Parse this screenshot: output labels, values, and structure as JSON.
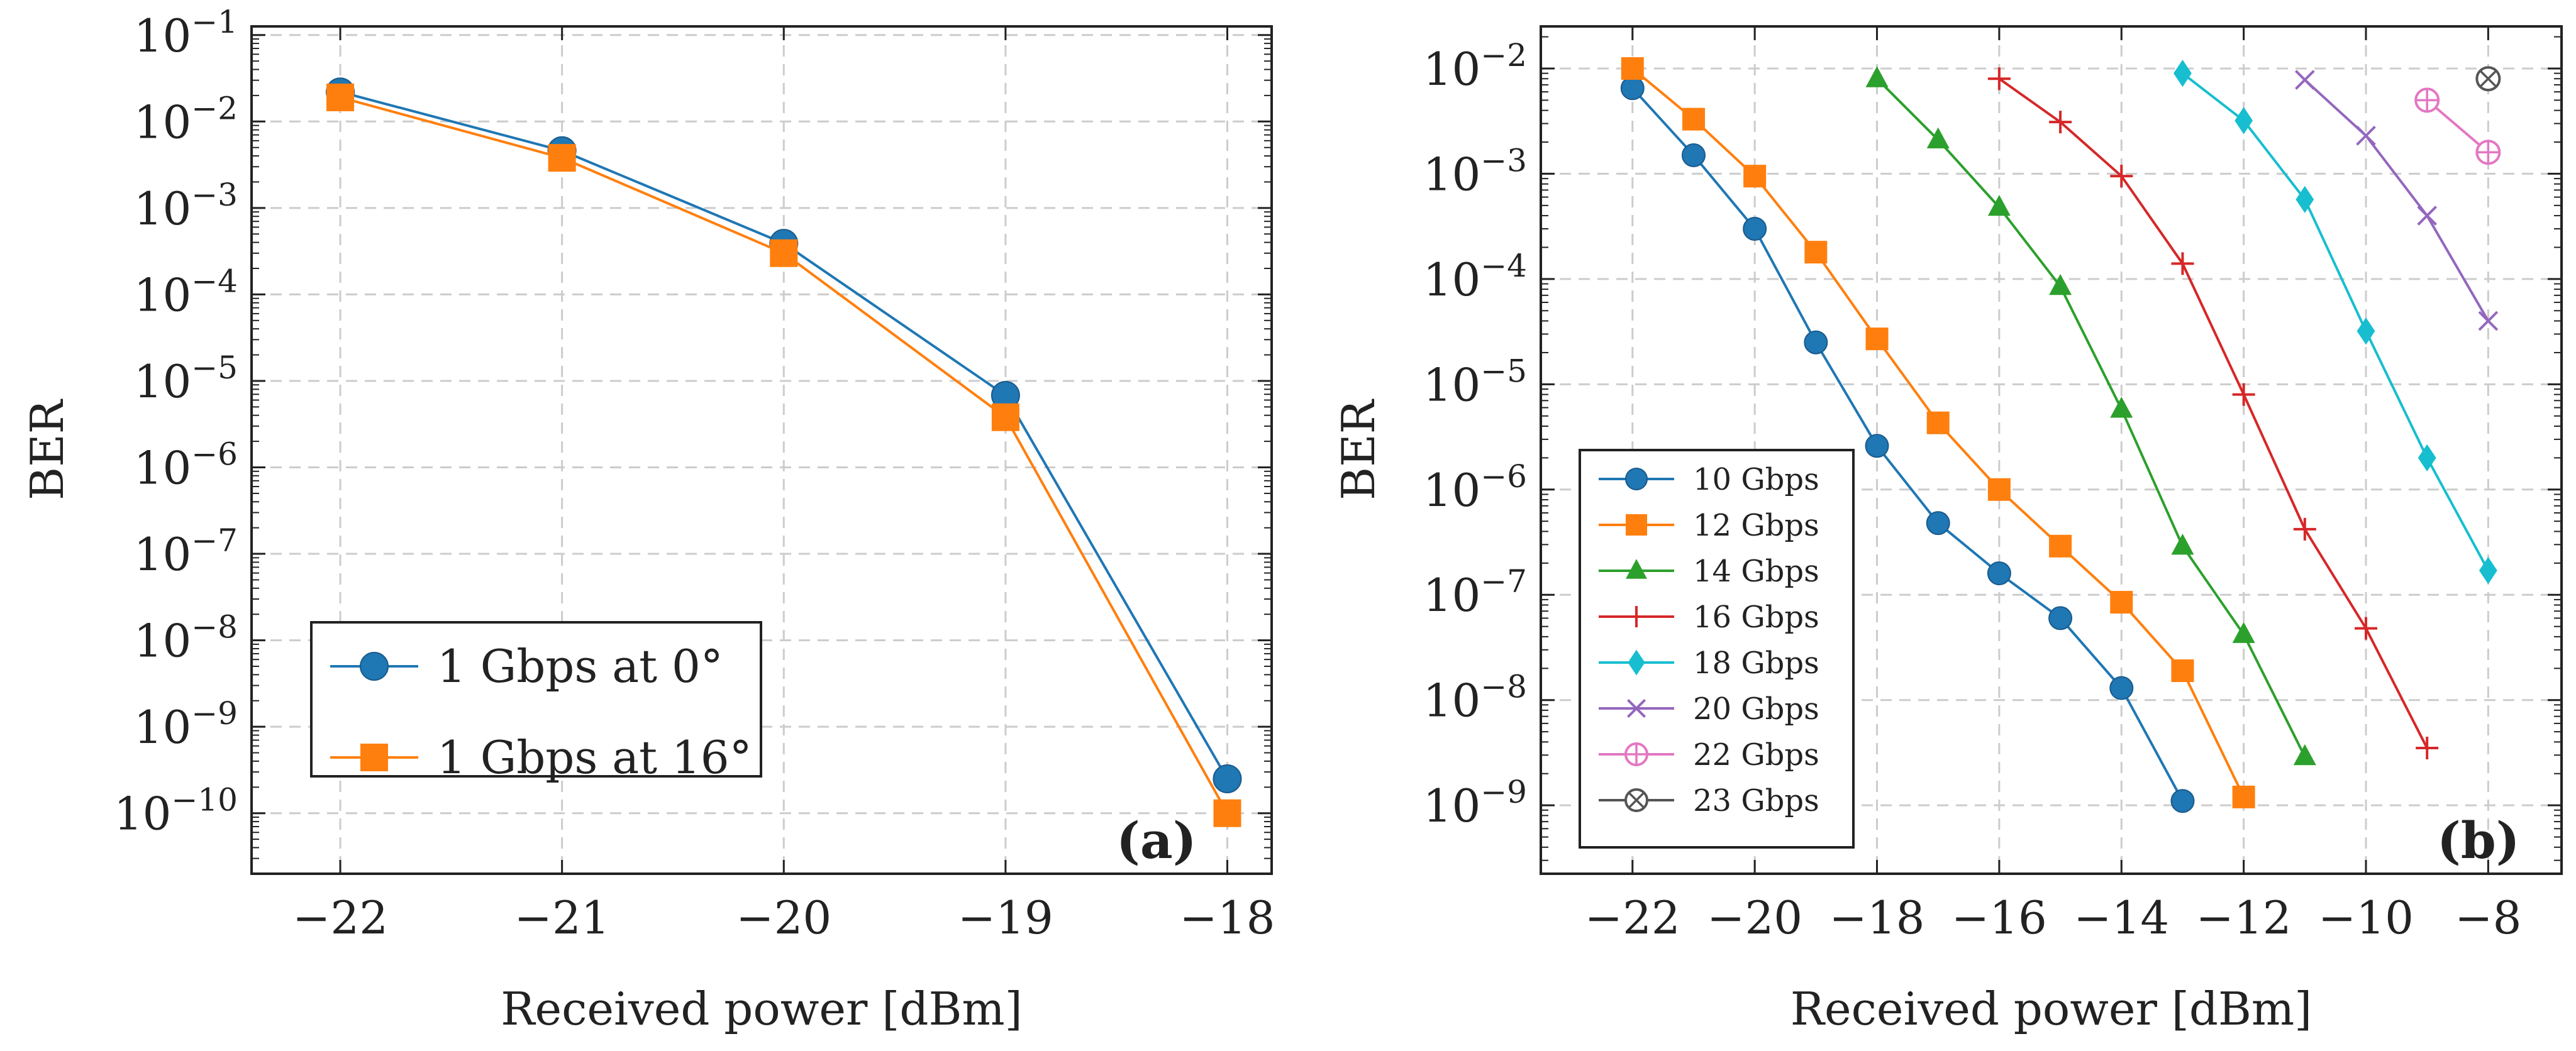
{
  "chart_data": [
    {
      "type": "line",
      "panel_label": "(a)",
      "xlabel": "Received power [dBm]",
      "ylabel": "BER",
      "yscale": "log",
      "xlim": [
        -22.4,
        -17.8
      ],
      "ylim_exp": [
        -10.7,
        -0.9
      ],
      "x_ticks": [
        -22,
        -21,
        -20,
        -19,
        -18
      ],
      "x_tick_labels": [
        "−22",
        "−21",
        "−20",
        "−19",
        "−18"
      ],
      "y_tick_exps": [
        -10,
        -9,
        -8,
        -7,
        -6,
        -5,
        -4,
        -3,
        -2,
        -1
      ],
      "y_tick_base": "10",
      "y_tick_exp_labels": [
        "−10",
        "−9",
        "−8",
        "−7",
        "−6",
        "−5",
        "−4",
        "−3",
        "−2",
        "−1"
      ],
      "grid": true,
      "legend_position": "bottom-left",
      "series": [
        {
          "name": "1 Gbps at 0°",
          "color": "#1f77b4",
          "marker": "circle",
          "x": [
            -22,
            -21,
            -20,
            -19,
            -18
          ],
          "y": [
            0.022,
            0.0046,
            0.00039,
            6.8e-06,
            2.5e-10
          ]
        },
        {
          "name": "1 Gbps at 16°",
          "color": "#ff7f0e",
          "marker": "square",
          "x": [
            -22,
            -21,
            -20,
            -19,
            -18
          ],
          "y": [
            0.019,
            0.0038,
            0.0003,
            3.8e-06,
            1e-10
          ]
        }
      ]
    },
    {
      "type": "line",
      "panel_label": "(b)",
      "xlabel": "Received power [dBm]",
      "ylabel": "BER",
      "yscale": "log",
      "xlim": [
        -23.5,
        -6.8
      ],
      "ylim_exp": [
        -9.65,
        -1.6
      ],
      "x_ticks": [
        -22,
        -20,
        -18,
        -16,
        -14,
        -12,
        -10,
        -8
      ],
      "x_tick_labels": [
        "−22",
        "−20",
        "−18",
        "−16",
        "−14",
        "−12",
        "−10",
        "−8"
      ],
      "y_tick_exps": [
        -9,
        -8,
        -7,
        -6,
        -5,
        -4,
        -3,
        -2
      ],
      "y_tick_base": "10",
      "y_tick_exp_labels": [
        "−9",
        "−8",
        "−7",
        "−6",
        "−5",
        "−4",
        "−3",
        "−2"
      ],
      "grid": true,
      "legend_position": "bottom-left",
      "series": [
        {
          "name": "10 Gbps",
          "color": "#1f77b4",
          "marker": "circle",
          "x": [
            -22,
            -21,
            -20,
            -19,
            -18,
            -17,
            -16,
            -15,
            -14,
            -13
          ],
          "y": [
            0.0065,
            0.0015,
            0.0003,
            2.5e-05,
            2.6e-06,
            4.8e-07,
            1.6e-07,
            6e-08,
            1.3e-08,
            1.1e-09
          ]
        },
        {
          "name": "12 Gbps",
          "color": "#ff7f0e",
          "marker": "square",
          "x": [
            -22,
            -21,
            -20,
            -19,
            -18,
            -17,
            -16,
            -15,
            -14,
            -13,
            -12
          ],
          "y": [
            0.01,
            0.0033,
            0.00095,
            0.00018,
            2.7e-05,
            4.3e-06,
            1e-06,
            2.9e-07,
            8.5e-08,
            1.9e-08,
            1.2e-09
          ]
        },
        {
          "name": "14 Gbps",
          "color": "#2ca02c",
          "marker": "triangle",
          "x": [
            -18,
            -17,
            -16,
            -15,
            -14,
            -13,
            -12,
            -11
          ],
          "y": [
            0.008,
            0.0021,
            0.00048,
            8.5e-05,
            5.8e-06,
            2.9e-07,
            4.2e-08,
            2.9e-09
          ]
        },
        {
          "name": "16 Gbps",
          "color": "#d62728",
          "marker": "plus",
          "x": [
            -16,
            -15,
            -14,
            -13,
            -12,
            -11,
            -10,
            -9
          ],
          "y": [
            0.008,
            0.0031,
            0.00095,
            0.00014,
            8e-06,
            4.2e-07,
            4.8e-08,
            3.5e-09
          ]
        },
        {
          "name": "18 Gbps",
          "color": "#17becf",
          "marker": "diamond",
          "x": [
            -13,
            -12,
            -11,
            -10,
            -9,
            -8
          ],
          "y": [
            0.009,
            0.0032,
            0.00057,
            3.2e-05,
            2e-06,
            1.7e-07
          ]
        },
        {
          "name": "20 Gbps",
          "color": "#9467bd",
          "marker": "x",
          "x": [
            -11,
            -10,
            -9,
            -8
          ],
          "y": [
            0.0078,
            0.0023,
            0.0004,
            4e-05
          ]
        },
        {
          "name": "22 Gbps",
          "color": "#e377c2",
          "marker": "oplus",
          "x": [
            -9,
            -8
          ],
          "y": [
            0.005,
            0.0016
          ]
        },
        {
          "name": "23 Gbps",
          "color": "#555555",
          "marker": "otimes",
          "x": [
            -8
          ],
          "y": [
            0.008
          ]
        }
      ]
    }
  ]
}
